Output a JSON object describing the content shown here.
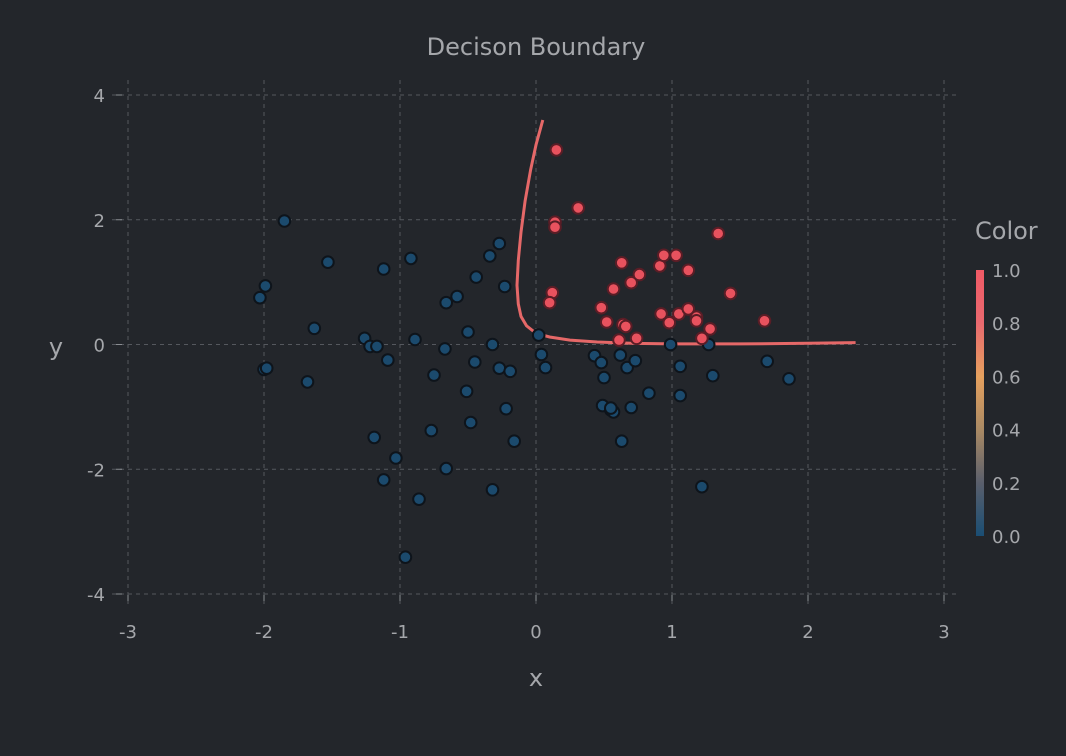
{
  "chart_data": {
    "type": "scatter",
    "title": "Decison Boundary",
    "xlabel": "x",
    "ylabel": "y",
    "xlim": [
      -3,
      3
    ],
    "ylim": [
      -4,
      4
    ],
    "xticks": [
      -3,
      -2,
      -1,
      0,
      1,
      2,
      3
    ],
    "yticks": [
      -4,
      -2,
      0,
      2,
      4
    ],
    "grid": true,
    "colorbar": {
      "title": "Color",
      "range": [
        0,
        1
      ],
      "ticks": [
        "0.0",
        "0.2",
        "0.4",
        "0.6",
        "0.8",
        "1.0"
      ],
      "colors": [
        "#1a4e74",
        "#5a5f6c",
        "#aa8a64",
        "#e5a05e",
        "#e9696f",
        "#f05a66"
      ]
    },
    "colors": {
      "class0": "#1b4a6d",
      "class1": "#e8525e",
      "boundary": "#e56868",
      "background": "#23262b",
      "grid": "#55585e"
    },
    "series": [
      {
        "class": 0,
        "points": [
          [
            -1.85,
            1.98
          ],
          [
            -2.03,
            0.75
          ],
          [
            -1.99,
            0.94
          ],
          [
            -1.53,
            1.32
          ],
          [
            -1.12,
            1.21
          ],
          [
            -0.92,
            1.38
          ],
          [
            -1.63,
            0.26
          ],
          [
            -1.26,
            0.1
          ],
          [
            -1.22,
            -0.03
          ],
          [
            -1.17,
            -0.03
          ],
          [
            -1.09,
            -0.25
          ],
          [
            -2.0,
            -0.4
          ],
          [
            -1.98,
            -0.38
          ],
          [
            -1.68,
            -0.6
          ],
          [
            -0.89,
            0.08
          ],
          [
            -0.66,
            0.67
          ],
          [
            -0.58,
            0.77
          ],
          [
            -0.44,
            1.08
          ],
          [
            -0.34,
            1.42
          ],
          [
            -0.27,
            1.62
          ],
          [
            -0.23,
            0.93
          ],
          [
            -0.5,
            0.2
          ],
          [
            -0.67,
            -0.07
          ],
          [
            -0.75,
            -0.49
          ],
          [
            -0.45,
            -0.28
          ],
          [
            -0.32,
            0.0
          ],
          [
            -0.27,
            -0.38
          ],
          [
            -0.19,
            -0.43
          ],
          [
            -0.51,
            -0.75
          ],
          [
            -0.22,
            -1.03
          ],
          [
            -0.48,
            -1.25
          ],
          [
            -0.77,
            -1.38
          ],
          [
            -1.19,
            -1.49
          ],
          [
            -1.03,
            -1.82
          ],
          [
            -1.12,
            -2.17
          ],
          [
            -0.86,
            -2.48
          ],
          [
            -0.96,
            -3.41
          ],
          [
            -0.66,
            -1.99
          ],
          [
            -0.32,
            -2.33
          ],
          [
            -0.16,
            -1.55
          ],
          [
            0.02,
            0.15
          ],
          [
            0.04,
            -0.16
          ],
          [
            0.07,
            -0.37
          ],
          [
            0.43,
            -0.18
          ],
          [
            0.48,
            -0.29
          ],
          [
            0.5,
            -0.53
          ],
          [
            0.62,
            -0.17
          ],
          [
            0.67,
            -0.37
          ],
          [
            0.73,
            -0.26
          ],
          [
            0.49,
            -0.98
          ],
          [
            0.55,
            -1.05
          ],
          [
            0.57,
            -1.08
          ],
          [
            0.55,
            -1.02
          ],
          [
            0.7,
            -1.01
          ],
          [
            0.83,
            -0.78
          ],
          [
            0.99,
            0.0
          ],
          [
            1.27,
            0.0
          ],
          [
            1.06,
            -0.35
          ],
          [
            1.3,
            -0.5
          ],
          [
            1.06,
            -0.82
          ],
          [
            0.63,
            -1.55
          ],
          [
            1.22,
            -2.28
          ],
          [
            1.7,
            -0.27
          ],
          [
            1.86,
            -0.55
          ]
        ]
      },
      {
        "class": 1,
        "points": [
          [
            0.15,
            3.12
          ],
          [
            0.31,
            2.19
          ],
          [
            0.14,
            1.96
          ],
          [
            0.14,
            1.88
          ],
          [
            0.12,
            0.83
          ],
          [
            0.1,
            0.67
          ],
          [
            0.48,
            0.59
          ],
          [
            0.52,
            0.36
          ],
          [
            0.57,
            0.89
          ],
          [
            0.63,
            1.31
          ],
          [
            0.7,
            0.99
          ],
          [
            0.76,
            1.12
          ],
          [
            0.91,
            1.26
          ],
          [
            0.94,
            1.43
          ],
          [
            1.03,
            1.43
          ],
          [
            1.12,
            1.19
          ],
          [
            1.34,
            1.78
          ],
          [
            1.43,
            0.82
          ],
          [
            1.68,
            0.38
          ],
          [
            0.64,
            0.32
          ],
          [
            0.66,
            0.29
          ],
          [
            0.61,
            0.07
          ],
          [
            0.74,
            0.1
          ],
          [
            0.92,
            0.49
          ],
          [
            0.98,
            0.35
          ],
          [
            1.05,
            0.49
          ],
          [
            1.12,
            0.57
          ],
          [
            1.18,
            0.44
          ],
          [
            1.18,
            0.38
          ],
          [
            1.22,
            0.1
          ],
          [
            1.28,
            0.25
          ]
        ]
      }
    ],
    "boundary": [
      [
        0.05,
        3.6
      ],
      [
        0.0,
        3.2
      ],
      [
        -0.04,
        2.8
      ],
      [
        -0.08,
        2.3
      ],
      [
        -0.11,
        1.8
      ],
      [
        -0.13,
        1.35
      ],
      [
        -0.14,
        0.95
      ],
      [
        -0.13,
        0.65
      ],
      [
        -0.11,
        0.45
      ],
      [
        -0.07,
        0.3
      ],
      [
        0.0,
        0.18
      ],
      [
        0.1,
        0.12
      ],
      [
        0.25,
        0.07
      ],
      [
        0.45,
        0.04
      ],
      [
        0.7,
        0.02
      ],
      [
        1.0,
        0.01
      ],
      [
        1.5,
        0.01
      ],
      [
        2.0,
        0.02
      ],
      [
        2.35,
        0.03
      ]
    ]
  }
}
